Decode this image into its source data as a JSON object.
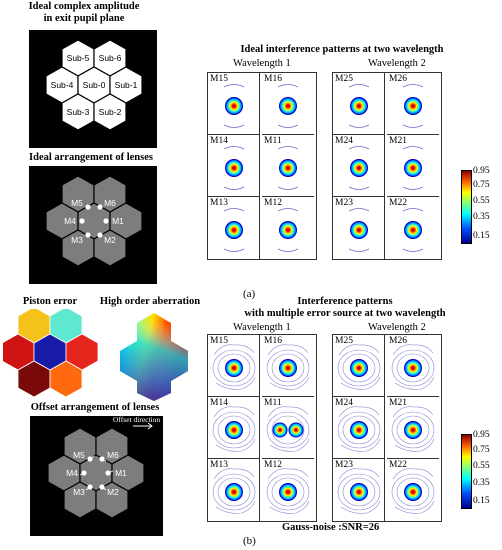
{
  "panel_a": {
    "pupil_title_1": "Ideal complex amplitude",
    "pupil_title_2": "in exit pupil plane",
    "sub_labels": [
      "Sub-5",
      "Sub-6",
      "Sub-4",
      "Sub-0",
      "Sub-1",
      "Sub-3",
      "Sub-2"
    ],
    "lens_title": "Ideal arrangement of lenses",
    "lens_labels": [
      "M5",
      "M6",
      "M4",
      "M1",
      "M3",
      "M2"
    ],
    "grid_title": "Ideal interference patterns at two wavelength",
    "wavelength_1": "Wavelength 1",
    "wavelength_2": "Wavelength 2",
    "cells_w1": [
      "M15",
      "M16",
      "M14",
      "M11",
      "M13",
      "M12"
    ],
    "cells_w2": [
      "M25",
      "M26",
      "M24",
      "M21",
      "M23",
      "M22"
    ],
    "colorbar_ticks": [
      "0.95",
      "0.75",
      "0.55",
      "0.35",
      "0.15"
    ],
    "caption": "(a)"
  },
  "panel_b": {
    "piston_title": "Piston error",
    "aberration_title": "High order aberration",
    "offset_title": "Offset arrangement of lenses",
    "offset_direction": "Offset direction",
    "lens_labels": [
      "M5",
      "M6",
      "M4",
      "M1",
      "M3",
      "M2"
    ],
    "grid_title_1": "Interference patterns",
    "grid_title_2": "with multiple error source at two wavelength",
    "wavelength_1": "Wavelength 1",
    "wavelength_2": "Wavelength 2",
    "cells_w1": [
      "M15",
      "M16",
      "M14",
      "M11",
      "M13",
      "M12"
    ],
    "cells_w2": [
      "M25",
      "M26",
      "M24",
      "M21",
      "M23",
      "M22"
    ],
    "colorbar_ticks": [
      "0.95",
      "0.75",
      "0.55",
      "0.35",
      "0.15"
    ],
    "noise_note": "Gauss-noise :SNR=26",
    "caption": "(b)",
    "piston_colors": [
      "#f4c21b",
      "#5fe8d0",
      "#d01414",
      "#1a1aa8",
      "#e6261c",
      "#7a0a0a",
      "#ff6a10"
    ]
  }
}
